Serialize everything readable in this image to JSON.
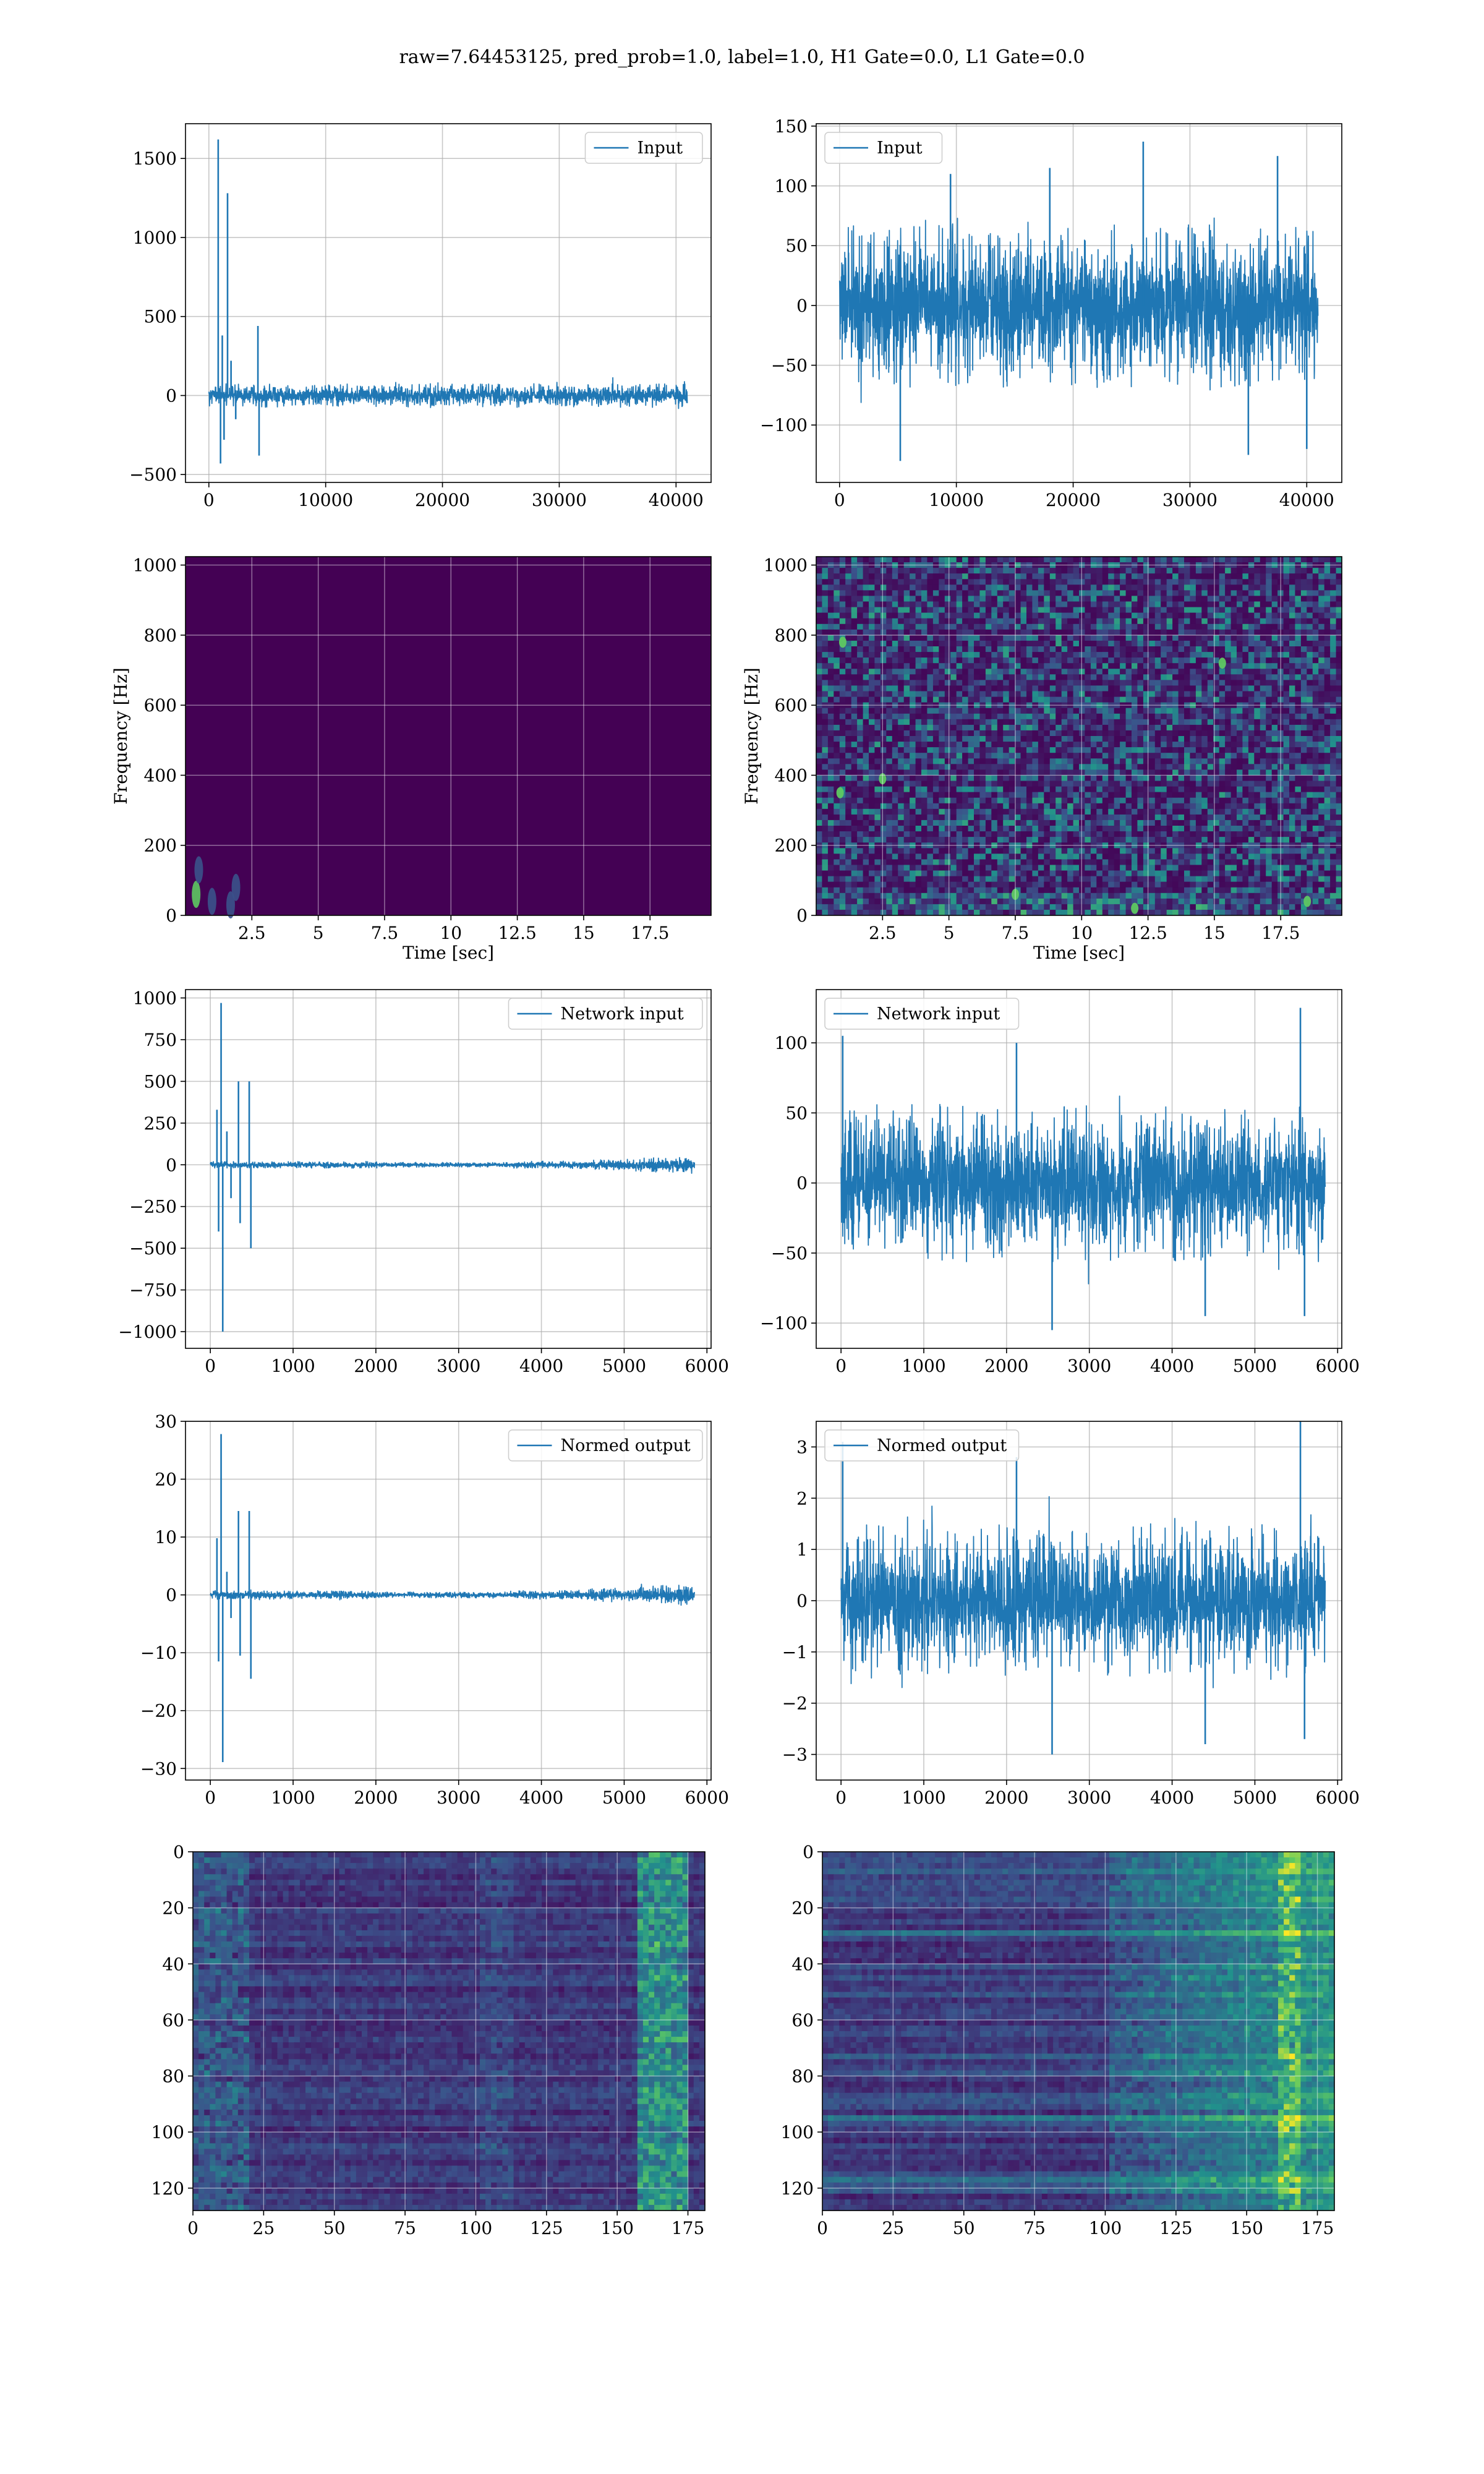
{
  "figure": {
    "title": "raw=7.64453125, pred_prob=1.0, label=1.0, H1 Gate=0.0, L1 Gate=0.0"
  },
  "colors": {
    "series": "#1f77b4",
    "grid": "#b0b0b0",
    "viridis_dark": "#440154",
    "viridis_mid": "#3b528b",
    "viridis_teal": "#21918c",
    "viridis_green": "#5ec962",
    "viridis_yellow": "#fde725"
  },
  "chart_data": [
    {
      "id": "p1",
      "type": "line",
      "legend": "Input",
      "legend_loc": "upper-right",
      "xlim": [
        -2000,
        43000
      ],
      "ylim": [
        -550,
        1720
      ],
      "xticks": [
        0,
        10000,
        20000,
        30000,
        40000
      ],
      "yticks": [
        -500,
        0,
        500,
        1000,
        1500
      ],
      "x_range": [
        0,
        40960
      ],
      "noise_amplitude": 60,
      "spikes": [
        [
          800,
          1620
        ],
        [
          1000,
          -430
        ],
        [
          1150,
          380
        ],
        [
          1300,
          -280
        ],
        [
          1600,
          1280
        ],
        [
          1900,
          220
        ],
        [
          2300,
          -150
        ],
        [
          4200,
          440
        ],
        [
          4300,
          -380
        ]
      ]
    },
    {
      "id": "p2",
      "type": "line",
      "legend": "Input",
      "legend_loc": "upper-left",
      "xlim": [
        -2000,
        43000
      ],
      "ylim": [
        -148,
        152
      ],
      "xticks": [
        0,
        10000,
        20000,
        30000,
        40000
      ],
      "yticks": [
        -100,
        -50,
        0,
        50,
        100,
        150
      ],
      "x_range": [
        0,
        40960
      ],
      "noise_amplitude": 55,
      "spikes": [
        [
          5200,
          -130
        ],
        [
          9500,
          110
        ],
        [
          18000,
          115
        ],
        [
          26000,
          137
        ],
        [
          35000,
          -125
        ],
        [
          37500,
          125
        ],
        [
          40000,
          -120
        ]
      ]
    },
    {
      "id": "p3",
      "type": "heatmap",
      "xlabel": "Time [sec]",
      "ylabel": "Frequency [Hz]",
      "xlim": [
        0.0,
        19.8
      ],
      "ylim": [
        0,
        1024
      ],
      "xticks": [
        2.5,
        5.0,
        7.5,
        10.0,
        12.5,
        15.0,
        17.5
      ],
      "yticks": [
        0,
        200,
        400,
        600,
        800,
        1000
      ],
      "pattern": "dark-with-low-freq-blips",
      "blips": [
        [
          0.4,
          60
        ],
        [
          0.5,
          130
        ],
        [
          1.0,
          40
        ],
        [
          1.7,
          30
        ],
        [
          1.9,
          80
        ]
      ]
    },
    {
      "id": "p4",
      "type": "heatmap",
      "xlabel": "Time [sec]",
      "ylabel": "Frequency [Hz]",
      "xlim": [
        0.0,
        19.8
      ],
      "ylim": [
        0,
        1024
      ],
      "xticks": [
        2.5,
        5.0,
        7.5,
        10.0,
        12.5,
        15.0,
        17.5
      ],
      "yticks": [
        0,
        200,
        400,
        600,
        800,
        1000
      ],
      "pattern": "speckle-noise",
      "blips": [
        [
          7.5,
          60
        ],
        [
          1.0,
          780
        ],
        [
          0.9,
          350
        ],
        [
          15.3,
          720
        ],
        [
          2.5,
          390
        ],
        [
          18.5,
          40
        ],
        [
          12.0,
          20
        ]
      ]
    },
    {
      "id": "p5",
      "type": "line",
      "legend": "Network input",
      "legend_loc": "upper-right",
      "xlim": [
        -300,
        6050
      ],
      "ylim": [
        -1100,
        1050
      ],
      "xticks": [
        0,
        1000,
        2000,
        3000,
        4000,
        5000,
        6000
      ],
      "yticks": [
        -1000,
        -750,
        -500,
        -250,
        0,
        250,
        500,
        750,
        1000
      ],
      "x_range": [
        0,
        5850
      ],
      "noise_amplitude": 30,
      "envelope": "rising-tail",
      "spikes": [
        [
          80,
          330
        ],
        [
          100,
          -400
        ],
        [
          130,
          970
        ],
        [
          150,
          -1000
        ],
        [
          200,
          200
        ],
        [
          250,
          -200
        ],
        [
          340,
          500
        ],
        [
          360,
          -350
        ],
        [
          470,
          500
        ],
        [
          490,
          -500
        ]
      ]
    },
    {
      "id": "p6",
      "type": "line",
      "legend": "Network input",
      "legend_loc": "upper-left",
      "xlim": [
        -300,
        6050
      ],
      "ylim": [
        -118,
        138
      ],
      "xticks": [
        0,
        1000,
        2000,
        3000,
        4000,
        5000,
        6000
      ],
      "yticks": [
        -100,
        -50,
        0,
        50,
        100
      ],
      "x_range": [
        0,
        5850
      ],
      "noise_amplitude": 45,
      "spikes": [
        [
          20,
          105
        ],
        [
          2120,
          100
        ],
        [
          2550,
          -105
        ],
        [
          4400,
          -95
        ],
        [
          5550,
          125
        ],
        [
          5600,
          -95
        ]
      ]
    },
    {
      "id": "p7",
      "type": "line",
      "legend": "Normed output",
      "legend_loc": "upper-right",
      "xlim": [
        -300,
        6050
      ],
      "ylim": [
        -32,
        30
      ],
      "xticks": [
        0,
        1000,
        2000,
        3000,
        4000,
        5000,
        6000
      ],
      "yticks": [
        -30,
        -20,
        -10,
        0,
        10,
        20,
        30
      ],
      "x_range": [
        0,
        5850
      ],
      "noise_amplitude": 1.1,
      "envelope": "rising-tail",
      "spikes": [
        [
          80,
          9.8
        ],
        [
          100,
          -11.5
        ],
        [
          130,
          27.8
        ],
        [
          150,
          -28.9
        ],
        [
          200,
          4.0
        ],
        [
          250,
          -4.0
        ],
        [
          340,
          14.5
        ],
        [
          360,
          -10.5
        ],
        [
          470,
          14.5
        ],
        [
          490,
          -14.5
        ]
      ]
    },
    {
      "id": "p8",
      "type": "line",
      "legend": "Normed output",
      "legend_loc": "upper-left",
      "xlim": [
        -300,
        6050
      ],
      "ylim": [
        -3.5,
        3.5
      ],
      "xticks": [
        0,
        1000,
        2000,
        3000,
        4000,
        5000,
        6000
      ],
      "yticks": [
        -3,
        -2,
        -1,
        0,
        1,
        2,
        3
      ],
      "x_range": [
        0,
        5850
      ],
      "noise_amplitude": 1.2,
      "spikes": [
        [
          20,
          3.1
        ],
        [
          2120,
          2.8
        ],
        [
          2550,
          -3.0
        ],
        [
          4400,
          -2.8
        ],
        [
          5550,
          3.5
        ],
        [
          5600,
          -2.7
        ]
      ]
    },
    {
      "id": "p9",
      "type": "heatmap",
      "xlim": [
        0,
        181
      ],
      "ylim": [
        128,
        0
      ],
      "xticks": [
        0,
        25,
        50,
        75,
        100,
        125,
        150,
        175
      ],
      "yticks": [
        0,
        20,
        40,
        60,
        80,
        100,
        120
      ],
      "pattern": "feature-map-left"
    },
    {
      "id": "p10",
      "type": "heatmap",
      "xlim": [
        0,
        181
      ],
      "ylim": [
        128,
        0
      ],
      "xticks": [
        0,
        25,
        50,
        75,
        100,
        125,
        150,
        175
      ],
      "yticks": [
        0,
        20,
        40,
        60,
        80,
        100,
        120
      ],
      "pattern": "feature-map-right"
    }
  ]
}
